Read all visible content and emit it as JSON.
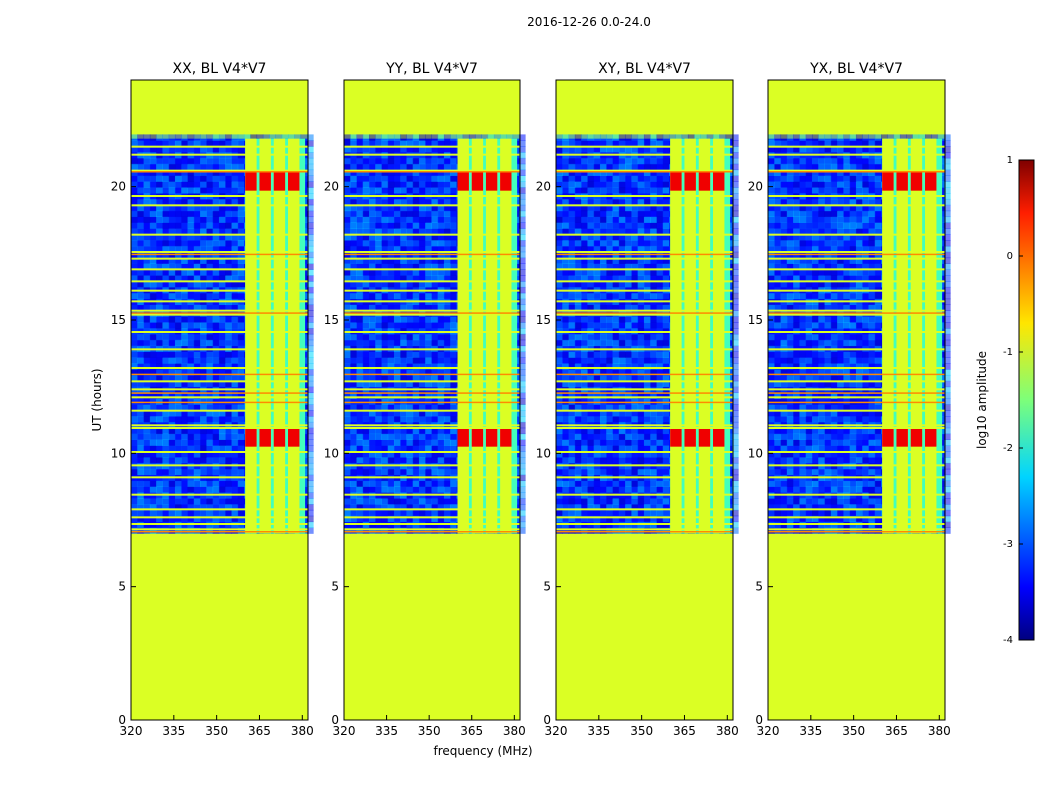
{
  "chart_data": {
    "type": "heatmap",
    "suptitle": "2016-12-26 0.0-24.0",
    "xlabel": "frequency (MHz)",
    "ylabel": "UT (hours)",
    "xlim": [
      320,
      382
    ],
    "ylim": [
      0,
      24
    ],
    "xticks": [
      320,
      335,
      350,
      365,
      380
    ],
    "yticks": [
      0,
      5,
      10,
      15,
      20
    ],
    "panels": [
      {
        "title": "XX, BL V4*V7",
        "strongest_rfi_hours": [
          20.2,
          10.6
        ]
      },
      {
        "title": "YY, BL V4*V7",
        "strongest_rfi_hours": [
          20.2,
          10.6
        ]
      },
      {
        "title": "XY, BL V4*V7",
        "strongest_rfi_hours": [
          20.2,
          10.6
        ]
      },
      {
        "title": "YX, BL V4*V7",
        "strongest_rfi_hours": [
          20.2,
          10.6
        ]
      }
    ],
    "observation_hours": [
      7.0,
      21.8
    ],
    "flagged_value_log10": -1.05,
    "rfi_band_mhz": [
      360,
      381
    ],
    "rfi_sub_bands_mhz": [
      [
        360,
        364
      ],
      [
        365,
        369
      ],
      [
        370,
        374
      ],
      [
        375,
        379
      ]
    ],
    "colorbar": {
      "label": "log10 amplitude",
      "range": [
        -4,
        1
      ],
      "ticks": [
        1,
        0,
        -1,
        -2,
        -3,
        -4
      ],
      "colormap": "jet"
    }
  }
}
